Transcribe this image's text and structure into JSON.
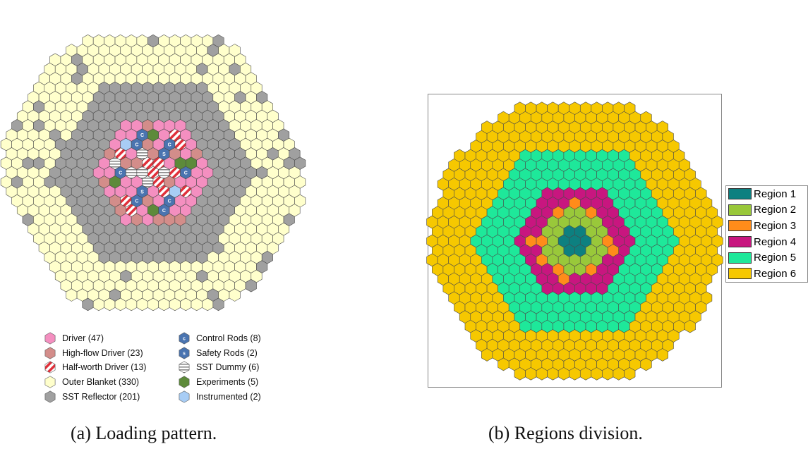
{
  "panel_a": {
    "caption": "(a) Loading pattern.",
    "legend_left": [
      {
        "label": "Driver (47)",
        "color": "#f48fc0",
        "kind": "driver"
      },
      {
        "label": "High-flow Driver (23)",
        "color": "#d38d8a",
        "kind": "highflow"
      },
      {
        "label": "Half-worth Driver (13)",
        "color": "#e0303a",
        "kind": "halfworth"
      },
      {
        "label": "Outer Blanket (330)",
        "color": "#ffffcc",
        "kind": "blanket"
      },
      {
        "label": "SST Reflector (201)",
        "color": "#a0a0a0",
        "kind": "reflector"
      }
    ],
    "legend_right": [
      {
        "label": "Control Rods (8)",
        "color": "#4a74b0",
        "kind": "control",
        "glyph": "c"
      },
      {
        "label": "Safety Rods (2)",
        "color": "#4a74b0",
        "kind": "safety",
        "glyph": "s"
      },
      {
        "label": "SST Dummy (6)",
        "color": "#e8e8e8",
        "kind": "dummy"
      },
      {
        "label": "Experiments (5)",
        "color": "#5d8a3a",
        "kind": "experiment"
      },
      {
        "label": "Instrumented (2)",
        "color": "#a8cdf5",
        "kind": "instrumented"
      }
    ],
    "rod_glyph_control": "C",
    "rod_glyph_safety": "S"
  },
  "panel_b": {
    "caption": "(b) Regions division.",
    "legend": [
      {
        "label": "Region 1",
        "color": "#0d8080"
      },
      {
        "label": "Region 2",
        "color": "#99c83a"
      },
      {
        "label": "Region 3",
        "color": "#ff8c1a"
      },
      {
        "label": "Region 4",
        "color": "#c8167f"
      },
      {
        "label": "Region 5",
        "color": "#1ee89a"
      },
      {
        "label": "Region 6",
        "color": "#f6c800"
      }
    ]
  }
}
